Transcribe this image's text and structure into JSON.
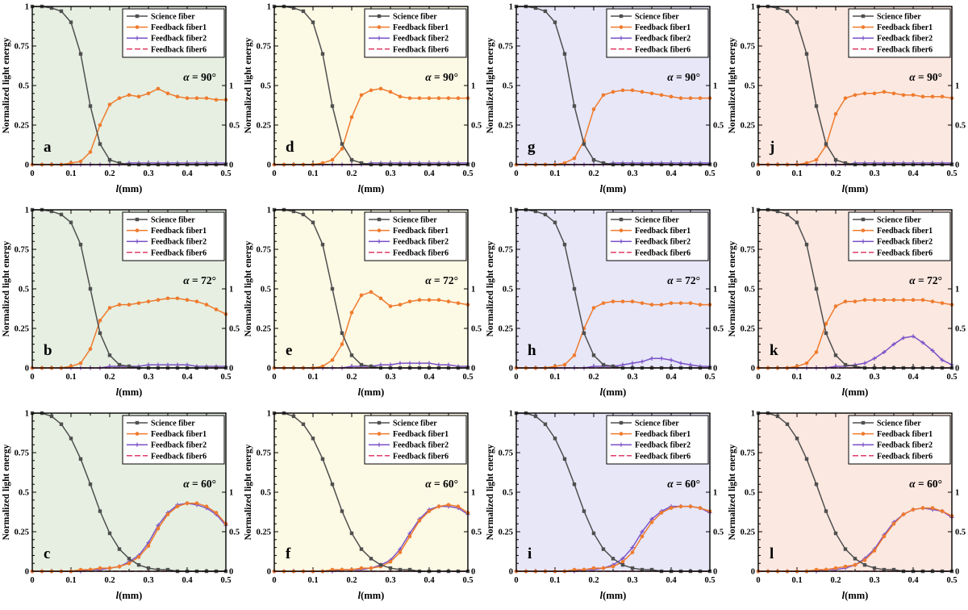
{
  "figure": {
    "xlabel": "l(mm)",
    "ylabel": "Normalized light energy",
    "x_tick_labels": [
      "0",
      "0.1",
      "0.2",
      "0.3",
      "0.4",
      "0.5"
    ],
    "y_tick_labels_left": [
      "0",
      "0.25",
      "0.5",
      "0.75",
      "1"
    ],
    "y_tick_labels_right": [
      "0",
      "0.5",
      "1"
    ],
    "xlim": [
      0,
      0.5
    ],
    "ylim_left": [
      0,
      1
    ],
    "ylim_right": [
      0,
      2
    ],
    "right_tick_positions_on_left_scale": [
      0,
      0.25,
      0.5
    ],
    "legend_labels": [
      "Science fiber",
      "Feedback fiber1",
      "Feedback fiber2",
      "Feedback fiber6"
    ],
    "series_styles": [
      {
        "name": "Science fiber",
        "color": "#4f4f4f",
        "marker": "square",
        "dash": "none"
      },
      {
        "name": "Feedback fiber1",
        "color": "#ef7b2e",
        "marker": "circle",
        "dash": "none"
      },
      {
        "name": "Feedback fiber2",
        "color": "#7b52c8",
        "marker": "plus",
        "dash": "none"
      },
      {
        "name": "Feedback fiber6",
        "color": "#e23b67",
        "marker": "none",
        "dash": "7 3"
      }
    ],
    "column_backgrounds": [
      "#e6efe1",
      "#fcf9e4",
      "#e7e7f8",
      "#fbe8e0"
    ],
    "x": [
      0,
      0.025,
      0.05,
      0.075,
      0.1,
      0.125,
      0.15,
      0.175,
      0.2,
      0.225,
      0.25,
      0.275,
      0.3,
      0.325,
      0.35,
      0.375,
      0.4,
      0.425,
      0.45,
      0.475,
      0.5
    ]
  },
  "chart_data": [
    {
      "type": "line",
      "label": "a",
      "alpha_label": "α = 90°",
      "alpha": "90°",
      "bg": "#e6efe1",
      "series_values": [
        [
          1,
          1,
          0.99,
          0.97,
          0.9,
          0.7,
          0.37,
          0.13,
          0.03,
          0.01,
          0,
          0,
          0,
          0,
          0,
          0,
          0,
          0,
          0,
          0,
          0
        ],
        [
          0,
          0,
          0,
          0,
          0.01,
          0.02,
          0.08,
          0.25,
          0.38,
          0.42,
          0.44,
          0.43,
          0.45,
          0.48,
          0.45,
          0.43,
          0.42,
          0.42,
          0.42,
          0.41,
          0.41
        ],
        [
          0,
          0,
          0,
          0,
          0,
          0,
          0,
          0,
          0,
          0,
          0.01,
          0.01,
          0.01,
          0.01,
          0.01,
          0.01,
          0.01,
          0.01,
          0.01,
          0.01,
          0.01
        ],
        [
          0,
          0,
          0,
          0,
          0,
          0,
          0,
          0,
          0,
          0,
          0,
          0,
          0,
          0,
          0,
          0,
          0,
          0,
          0,
          0,
          0
        ]
      ]
    },
    {
      "type": "line",
      "label": "d",
      "alpha_label": "α = 90°",
      "alpha": "90°",
      "bg": "#fcf9e4",
      "series_values": [
        [
          1,
          1,
          0.99,
          0.97,
          0.9,
          0.7,
          0.37,
          0.13,
          0.03,
          0.01,
          0,
          0,
          0,
          0,
          0,
          0,
          0,
          0,
          0,
          0,
          0
        ],
        [
          0,
          0,
          0,
          0,
          0,
          0.01,
          0.03,
          0.1,
          0.3,
          0.44,
          0.47,
          0.48,
          0.46,
          0.43,
          0.42,
          0.42,
          0.42,
          0.42,
          0.42,
          0.42,
          0.42
        ],
        [
          0,
          0,
          0,
          0,
          0,
          0,
          0,
          0,
          0,
          0,
          0.01,
          0.01,
          0.01,
          0.01,
          0.01,
          0.01,
          0.01,
          0.01,
          0.01,
          0.01,
          0.01
        ],
        [
          0,
          0,
          0,
          0,
          0,
          0,
          0,
          0,
          0,
          0,
          0,
          0,
          0,
          0,
          0,
          0,
          0,
          0,
          0,
          0,
          0
        ]
      ]
    },
    {
      "type": "line",
      "label": "g",
      "alpha_label": "α = 90°",
      "alpha": "90°",
      "bg": "#e7e7f8",
      "series_values": [
        [
          1,
          1,
          0.99,
          0.97,
          0.9,
          0.7,
          0.37,
          0.13,
          0.03,
          0.01,
          0,
          0,
          0,
          0,
          0,
          0,
          0,
          0,
          0,
          0,
          0
        ],
        [
          0,
          0,
          0,
          0,
          0,
          0.01,
          0.04,
          0.15,
          0.35,
          0.44,
          0.46,
          0.47,
          0.47,
          0.46,
          0.45,
          0.44,
          0.43,
          0.42,
          0.42,
          0.42,
          0.42
        ],
        [
          0,
          0,
          0,
          0,
          0,
          0,
          0,
          0,
          0,
          0,
          0.01,
          0.01,
          0.01,
          0.01,
          0.01,
          0.01,
          0.01,
          0.01,
          0.01,
          0.01,
          0.01
        ],
        [
          0,
          0,
          0,
          0,
          0,
          0,
          0,
          0,
          0,
          0,
          0,
          0,
          0,
          0,
          0,
          0,
          0,
          0,
          0,
          0,
          0
        ]
      ]
    },
    {
      "type": "line",
      "label": "j",
      "alpha_label": "α = 90°",
      "alpha": "90°",
      "bg": "#fbe8e0",
      "series_values": [
        [
          1,
          1,
          0.99,
          0.97,
          0.9,
          0.7,
          0.37,
          0.13,
          0.03,
          0.01,
          0,
          0,
          0,
          0,
          0,
          0,
          0,
          0,
          0,
          0,
          0
        ],
        [
          0,
          0,
          0,
          0,
          0,
          0.01,
          0.03,
          0.12,
          0.32,
          0.42,
          0.44,
          0.45,
          0.45,
          0.46,
          0.45,
          0.44,
          0.44,
          0.43,
          0.43,
          0.43,
          0.42
        ],
        [
          0,
          0,
          0,
          0,
          0,
          0,
          0,
          0,
          0,
          0,
          0.01,
          0.01,
          0.01,
          0.01,
          0.01,
          0.01,
          0.01,
          0.01,
          0.01,
          0.01,
          0.01
        ],
        [
          0,
          0,
          0,
          0,
          0,
          0,
          0,
          0,
          0,
          0,
          0,
          0,
          0,
          0,
          0,
          0,
          0,
          0,
          0,
          0,
          0
        ]
      ]
    },
    {
      "type": "line",
      "label": "b",
      "alpha_label": "α = 72°",
      "alpha": "72°",
      "bg": "#e6efe1",
      "series_values": [
        [
          1,
          1,
          0.99,
          0.97,
          0.92,
          0.78,
          0.5,
          0.22,
          0.08,
          0.02,
          0.01,
          0,
          0,
          0,
          0,
          0,
          0,
          0,
          0,
          0,
          0
        ],
        [
          0,
          0,
          0,
          0,
          0.01,
          0.03,
          0.12,
          0.3,
          0.38,
          0.4,
          0.4,
          0.41,
          0.42,
          0.43,
          0.44,
          0.44,
          0.43,
          0.42,
          0.4,
          0.37,
          0.34
        ],
        [
          0,
          0,
          0,
          0,
          0,
          0,
          0,
          0,
          0.01,
          0.01,
          0.01,
          0.01,
          0.02,
          0.02,
          0.02,
          0.02,
          0.02,
          0.01,
          0.01,
          0.01,
          0.01
        ],
        [
          0,
          0,
          0,
          0,
          0,
          0,
          0,
          0,
          0,
          0,
          0,
          0,
          0,
          0,
          0,
          0,
          0,
          0,
          0,
          0,
          0
        ]
      ]
    },
    {
      "type": "line",
      "label": "e",
      "alpha_label": "α = 72°",
      "alpha": "72°",
      "bg": "#fcf9e4",
      "series_values": [
        [
          1,
          1,
          0.99,
          0.97,
          0.92,
          0.78,
          0.5,
          0.22,
          0.08,
          0.02,
          0.01,
          0,
          0,
          0,
          0,
          0,
          0,
          0,
          0,
          0,
          0
        ],
        [
          0,
          0,
          0,
          0,
          0,
          0.01,
          0.05,
          0.15,
          0.35,
          0.46,
          0.48,
          0.44,
          0.39,
          0.4,
          0.42,
          0.43,
          0.43,
          0.43,
          0.42,
          0.41,
          0.4
        ],
        [
          0,
          0,
          0,
          0,
          0,
          0,
          0,
          0,
          0.01,
          0.01,
          0.01,
          0.02,
          0.02,
          0.03,
          0.03,
          0.03,
          0.03,
          0.02,
          0.02,
          0.01,
          0.01
        ],
        [
          0,
          0,
          0,
          0,
          0,
          0,
          0,
          0,
          0,
          0,
          0,
          0,
          0,
          0,
          0,
          0,
          0,
          0,
          0,
          0,
          0
        ]
      ]
    },
    {
      "type": "line",
      "label": "h",
      "alpha_label": "α = 72°",
      "alpha": "72°",
      "bg": "#e7e7f8",
      "series_values": [
        [
          1,
          1,
          0.99,
          0.97,
          0.92,
          0.78,
          0.5,
          0.22,
          0.08,
          0.02,
          0.01,
          0,
          0,
          0,
          0,
          0,
          0,
          0,
          0,
          0,
          0
        ],
        [
          0,
          0,
          0,
          0,
          0.01,
          0.02,
          0.08,
          0.25,
          0.38,
          0.41,
          0.42,
          0.42,
          0.42,
          0.41,
          0.4,
          0.4,
          0.41,
          0.41,
          0.41,
          0.4,
          0.4
        ],
        [
          0,
          0,
          0,
          0,
          0,
          0,
          0,
          0,
          0.01,
          0.01,
          0.01,
          0.02,
          0.03,
          0.04,
          0.06,
          0.06,
          0.05,
          0.03,
          0.02,
          0.01,
          0.01
        ],
        [
          0,
          0,
          0,
          0,
          0,
          0,
          0,
          0,
          0,
          0,
          0,
          0,
          0,
          0,
          0,
          0,
          0,
          0,
          0,
          0,
          0
        ]
      ]
    },
    {
      "type": "line",
      "label": "k",
      "alpha_label": "α = 72°",
      "alpha": "72°",
      "bg": "#fbe8e0",
      "series_values": [
        [
          1,
          1,
          0.99,
          0.97,
          0.92,
          0.78,
          0.5,
          0.22,
          0.08,
          0.02,
          0.01,
          0,
          0,
          0,
          0,
          0,
          0,
          0,
          0,
          0,
          0
        ],
        [
          0,
          0,
          0,
          0,
          0.01,
          0.03,
          0.1,
          0.28,
          0.39,
          0.42,
          0.42,
          0.43,
          0.43,
          0.43,
          0.43,
          0.43,
          0.43,
          0.43,
          0.42,
          0.41,
          0.4
        ],
        [
          0,
          0,
          0,
          0,
          0,
          0,
          0,
          0,
          0.01,
          0.01,
          0.02,
          0.03,
          0.06,
          0.1,
          0.15,
          0.19,
          0.2,
          0.16,
          0.11,
          0.05,
          0.02
        ],
        [
          0,
          0,
          0,
          0,
          0,
          0,
          0,
          0,
          0,
          0,
          0,
          0,
          0,
          0,
          0,
          0,
          0,
          0,
          0,
          0,
          0
        ]
      ]
    },
    {
      "type": "line",
      "label": "c",
      "alpha_label": "α = 60°",
      "alpha": "60°",
      "bg": "#e6efe1",
      "series_values": [
        [
          1,
          1,
          0.98,
          0.93,
          0.84,
          0.71,
          0.55,
          0.38,
          0.24,
          0.14,
          0.08,
          0.04,
          0.02,
          0.01,
          0.01,
          0,
          0,
          0,
          0,
          0,
          0
        ],
        [
          0,
          0,
          0,
          0,
          0,
          0.01,
          0.01,
          0.02,
          0.02,
          0.03,
          0.05,
          0.09,
          0.16,
          0.27,
          0.36,
          0.41,
          0.43,
          0.43,
          0.41,
          0.37,
          0.3
        ],
        [
          0,
          0,
          0,
          0,
          0,
          0,
          0.01,
          0.01,
          0.02,
          0.03,
          0.06,
          0.1,
          0.18,
          0.29,
          0.37,
          0.42,
          0.43,
          0.42,
          0.4,
          0.36,
          0.29
        ],
        [
          0,
          0,
          0,
          0,
          0,
          0,
          0,
          0,
          0,
          0,
          0,
          0,
          0,
          0,
          0,
          0,
          0,
          0,
          0,
          0,
          0
        ]
      ]
    },
    {
      "type": "line",
      "label": "f",
      "alpha_label": "α = 60°",
      "alpha": "60°",
      "bg": "#fcf9e4",
      "series_values": [
        [
          1,
          1,
          0.98,
          0.93,
          0.84,
          0.71,
          0.55,
          0.38,
          0.24,
          0.14,
          0.08,
          0.04,
          0.02,
          0.01,
          0.01,
          0,
          0,
          0,
          0,
          0,
          0
        ],
        [
          0,
          0,
          0,
          0,
          0,
          0,
          0.01,
          0.01,
          0.01,
          0.02,
          0.02,
          0.03,
          0.06,
          0.12,
          0.22,
          0.32,
          0.38,
          0.41,
          0.42,
          0.41,
          0.37
        ],
        [
          0,
          0,
          0,
          0,
          0,
          0,
          0,
          0.01,
          0.01,
          0.01,
          0.02,
          0.04,
          0.07,
          0.14,
          0.24,
          0.33,
          0.39,
          0.41,
          0.41,
          0.4,
          0.36
        ],
        [
          0,
          0,
          0,
          0,
          0,
          0,
          0,
          0,
          0,
          0,
          0,
          0,
          0,
          0,
          0,
          0,
          0,
          0,
          0,
          0,
          0
        ]
      ]
    },
    {
      "type": "line",
      "label": "i",
      "alpha_label": "α = 60°",
      "alpha": "60°",
      "bg": "#e7e7f8",
      "series_values": [
        [
          1,
          1,
          0.98,
          0.93,
          0.84,
          0.71,
          0.55,
          0.38,
          0.24,
          0.14,
          0.08,
          0.04,
          0.02,
          0.01,
          0.01,
          0,
          0,
          0,
          0,
          0,
          0
        ],
        [
          0,
          0,
          0,
          0,
          0,
          0,
          0.01,
          0.01,
          0.02,
          0.02,
          0.03,
          0.06,
          0.12,
          0.22,
          0.31,
          0.37,
          0.4,
          0.41,
          0.41,
          0.4,
          0.38
        ],
        [
          0,
          0,
          0,
          0,
          0,
          0,
          0,
          0.01,
          0.01,
          0.02,
          0.04,
          0.08,
          0.15,
          0.25,
          0.33,
          0.38,
          0.41,
          0.41,
          0.41,
          0.4,
          0.37
        ],
        [
          0,
          0,
          0,
          0,
          0,
          0,
          0,
          0,
          0,
          0,
          0,
          0,
          0,
          0,
          0,
          0,
          0,
          0,
          0,
          0,
          0
        ]
      ]
    },
    {
      "type": "line",
      "label": "l",
      "alpha_label": "α = 60°",
      "alpha": "60°",
      "bg": "#fbe8e0",
      "series_values": [
        [
          1,
          1,
          0.98,
          0.93,
          0.84,
          0.71,
          0.55,
          0.38,
          0.24,
          0.14,
          0.08,
          0.04,
          0.02,
          0.01,
          0.01,
          0,
          0,
          0,
          0,
          0,
          0
        ],
        [
          0,
          0,
          0,
          0,
          0,
          0,
          0.01,
          0.01,
          0.02,
          0.03,
          0.04,
          0.07,
          0.13,
          0.22,
          0.3,
          0.36,
          0.39,
          0.4,
          0.4,
          0.38,
          0.35
        ],
        [
          0,
          0,
          0,
          0,
          0,
          0,
          0,
          0.01,
          0.01,
          0.02,
          0.04,
          0.08,
          0.14,
          0.23,
          0.31,
          0.36,
          0.39,
          0.4,
          0.39,
          0.38,
          0.34
        ],
        [
          0,
          0,
          0,
          0,
          0,
          0,
          0,
          0,
          0,
          0,
          0,
          0,
          0,
          0,
          0,
          0,
          0,
          0,
          0,
          0,
          0
        ]
      ]
    }
  ]
}
